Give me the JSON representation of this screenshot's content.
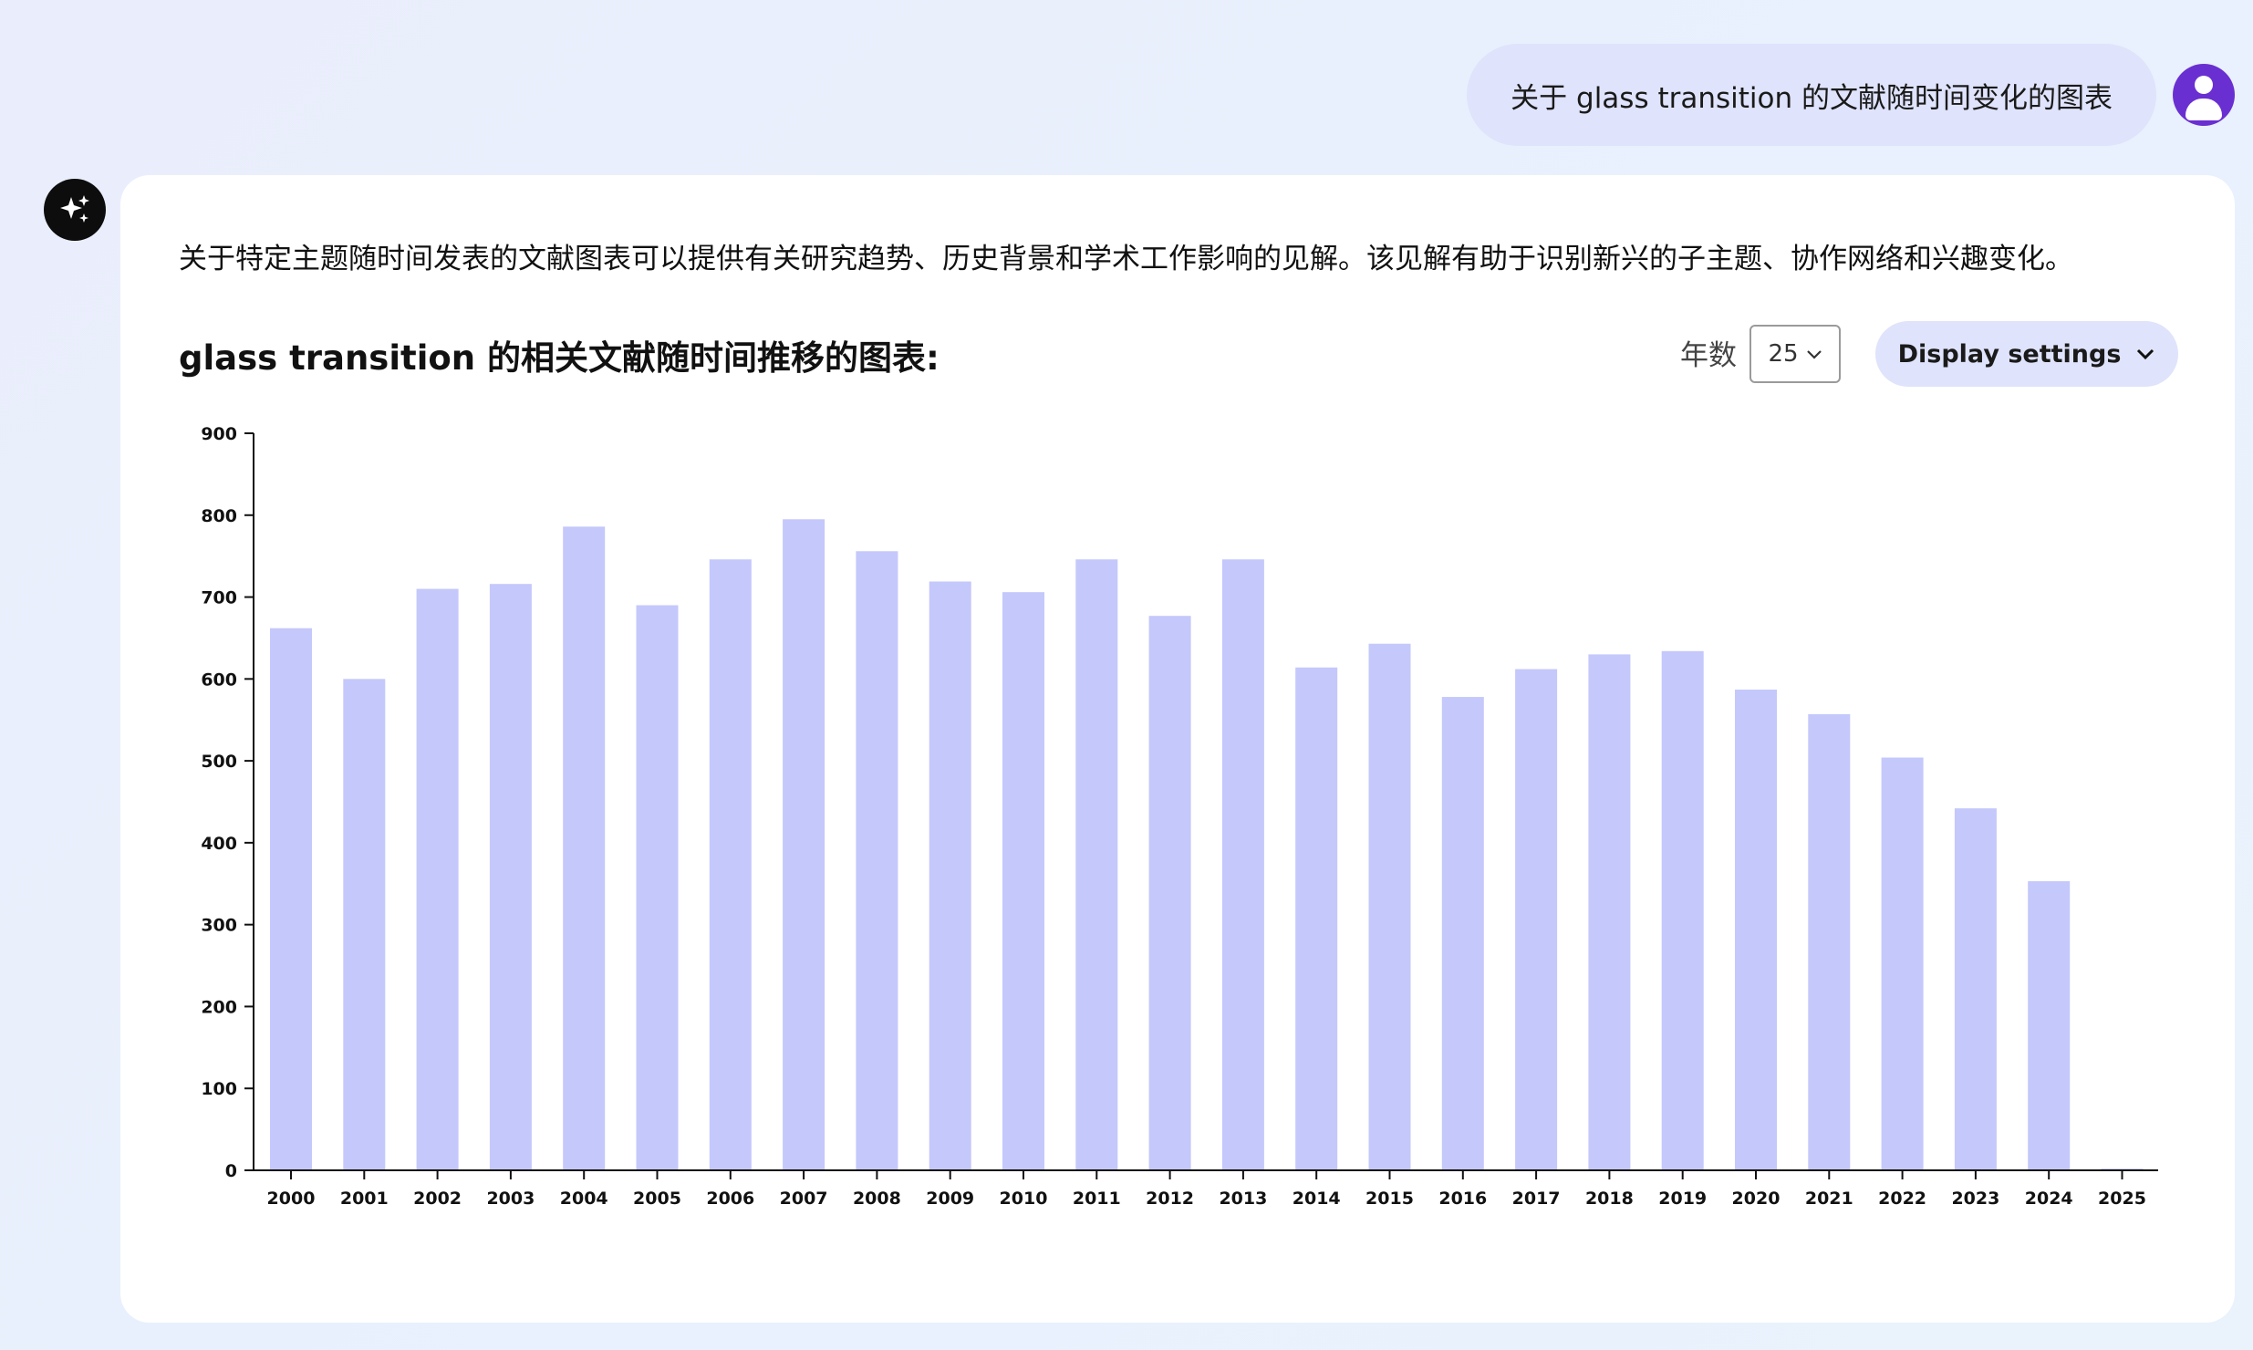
{
  "user_message": "关于 glass transition 的文献随时间变化的图表",
  "intro_text": "关于特定主题随时间发表的文献图表可以提供有关研究趋势、历史背景和学术工作影响的见解。该见解有助于识别新兴的子主题、协作网络和兴趣变化。",
  "controls": {
    "years_label": "年数",
    "years_value": "25",
    "display_settings_label": "Display settings"
  },
  "colors": {
    "bar": "#c4c8fb",
    "accent": "#6a2fd1",
    "bubble": "#dfe3fb"
  },
  "chart_data": {
    "type": "bar",
    "title": "glass transition 的相关文献随时间推移的图表:",
    "xlabel": "",
    "ylabel": "",
    "ylim": [
      0,
      900
    ],
    "yticks": [
      0,
      100,
      200,
      300,
      400,
      500,
      600,
      700,
      800,
      900
    ],
    "categories": [
      "2000",
      "2001",
      "2002",
      "2003",
      "2004",
      "2005",
      "2006",
      "2007",
      "2008",
      "2009",
      "2010",
      "2011",
      "2012",
      "2013",
      "2014",
      "2015",
      "2016",
      "2017",
      "2018",
      "2019",
      "2020",
      "2021",
      "2022",
      "2023",
      "2024",
      "2025"
    ],
    "values": [
      662,
      600,
      710,
      716,
      786,
      690,
      746,
      795,
      756,
      719,
      706,
      746,
      677,
      746,
      614,
      643,
      578,
      612,
      630,
      634,
      587,
      557,
      504,
      442,
      353,
      2
    ],
    "grid": false,
    "legend": "none"
  }
}
